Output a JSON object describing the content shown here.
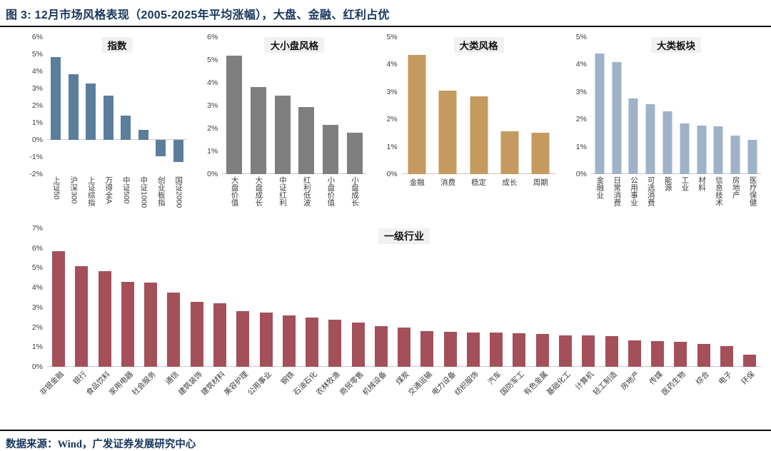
{
  "page": {
    "title": "图 3: 12月市场风格表现（2005-2025年平均涨幅），大盘、金融、红利占优",
    "footer": "数据来源：Wind，广发证券发展研究中心"
  },
  "colors": {
    "title_navy": "#17365D",
    "index_blue": "#5B7E9D",
    "style_gray": "#7F7F7F",
    "factor_gold": "#C49A5F",
    "sector_blue": "#9FB2C8",
    "industry_red": "#A4505A",
    "axis_line_gray": "#C9C9C9",
    "title_highlight_bg": "#F1F1F1"
  },
  "chart_data": [
    {
      "type": "bar",
      "title": "指数",
      "categories": [
        "上证50",
        "沪深300",
        "上证综指",
        "万得全A",
        "中证500",
        "中证1000",
        "创业板指",
        "国证2000"
      ],
      "values": [
        4.85,
        3.85,
        3.3,
        2.6,
        1.4,
        0.6,
        -0.95,
        -1.3
      ],
      "unit": "%",
      "ylim": [
        -2,
        6
      ],
      "ytick_step": 1,
      "grid": false,
      "bar_color": "#5B7E9D",
      "label_orientation": "vertical"
    },
    {
      "type": "bar",
      "title": "大小盘风格",
      "categories": [
        "大盘价值",
        "大盘成长",
        "中证红利",
        "红利低波",
        "小盘价值",
        "小盘成长"
      ],
      "values": [
        5.2,
        3.8,
        3.45,
        2.95,
        2.15,
        1.8
      ],
      "unit": "%",
      "ylim": [
        0,
        6
      ],
      "ytick_step": 1,
      "grid": false,
      "bar_color": "#7F7F7F",
      "label_orientation": "vertical"
    },
    {
      "type": "bar",
      "title": "大类风格",
      "categories": [
        "金融",
        "消费",
        "稳定",
        "成长",
        "周期"
      ],
      "values": [
        4.35,
        3.05,
        2.85,
        1.55,
        1.5
      ],
      "unit": "%",
      "ylim": [
        0,
        5
      ],
      "ytick_step": 1,
      "grid": false,
      "bar_color": "#C49A5F",
      "label_orientation": "horizontal"
    },
    {
      "type": "bar",
      "title": "大类板块",
      "categories": [
        "金融业",
        "日常消费",
        "公用事业",
        "可选消费",
        "能源",
        "工业",
        "材料",
        "信息技术",
        "房地产",
        "医疗保健"
      ],
      "values": [
        4.4,
        4.1,
        2.75,
        2.55,
        2.3,
        1.85,
        1.78,
        1.75,
        1.4,
        1.25
      ],
      "unit": "%",
      "ylim": [
        0,
        5
      ],
      "ytick_step": 1,
      "grid": false,
      "bar_color": "#9FB2C8",
      "label_orientation": "vertical"
    },
    {
      "type": "bar",
      "title": "一级行业",
      "categories": [
        "非银金融",
        "银行",
        "食品饮料",
        "家用电器",
        "社会服务",
        "通信",
        "建筑装饰",
        "建筑材料",
        "美容护理",
        "公用事业",
        "钢铁",
        "石油石化",
        "农林牧渔",
        "商贸零售",
        "机械设备",
        "煤炭",
        "交通运输",
        "电力设备",
        "纺织服饰",
        "汽车",
        "国防军工",
        "有色金属",
        "基础化工",
        "计算机",
        "轻工制造",
        "房地产",
        "传媒",
        "医药生物",
        "综合",
        "电子",
        "环保"
      ],
      "values": [
        5.85,
        5.1,
        4.85,
        4.3,
        4.25,
        3.75,
        3.3,
        3.2,
        2.8,
        2.75,
        2.6,
        2.5,
        2.4,
        2.25,
        2.05,
        2.0,
        1.8,
        1.78,
        1.75,
        1.72,
        1.7,
        1.65,
        1.6,
        1.58,
        1.55,
        1.35,
        1.3,
        1.25,
        1.15,
        1.05,
        0.6
      ],
      "unit": "%",
      "ylim": [
        0,
        7
      ],
      "ytick_step": 1,
      "grid": false,
      "bar_color": "#A4505A",
      "label_orientation": "diagonal"
    }
  ]
}
